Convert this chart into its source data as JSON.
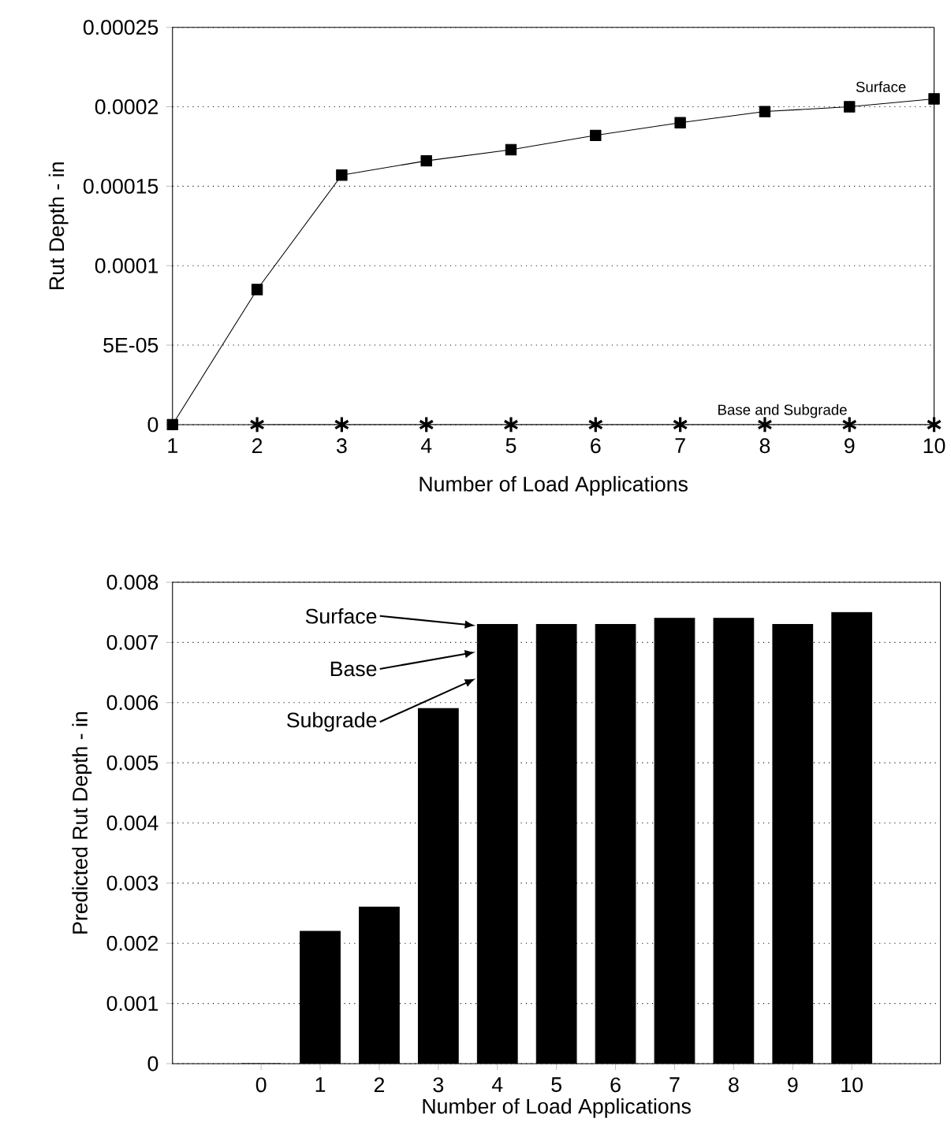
{
  "chart_data": [
    {
      "type": "line",
      "xlabel": "Number of Load Applications",
      "ylabel": "Rut Depth - in",
      "x": [
        1,
        2,
        3,
        4,
        5,
        6,
        7,
        8,
        9,
        10
      ],
      "series": [
        {
          "name": "Surface",
          "color": "#000000",
          "marker": "square",
          "values": [
            0,
            8.5e-05,
            0.000157,
            0.000166,
            0.000173,
            0.000182,
            0.00019,
            0.000197,
            0.0002,
            0.000205
          ]
        },
        {
          "name": "Base and Subgrade",
          "color": "#000000",
          "marker": "cross",
          "values": [
            null,
            0,
            0,
            0,
            0,
            0,
            0,
            0,
            0,
            0
          ]
        }
      ],
      "xlim": [
        1,
        10
      ],
      "xticks": [
        1,
        2,
        3,
        4,
        5,
        6,
        7,
        8,
        9,
        10
      ],
      "ylim": [
        0,
        0.00025
      ],
      "yticks": [
        0,
        {
          "value": 5e-05,
          "label": "5E-05"
        },
        0.0001,
        0.00015,
        0.0002,
        0.00025
      ],
      "grid": "y"
    },
    {
      "type": "bar",
      "xlabel": "Number of Load Applications",
      "ylabel": "Predicted Rut Depth - in",
      "categories": [
        null,
        "0",
        "1",
        "2",
        "3",
        "4",
        "5",
        "6",
        "7",
        "8",
        "9",
        "10",
        null
      ],
      "values": [
        null,
        0,
        0.0022,
        0.0026,
        0.0059,
        0.0073,
        0.0073,
        0.0073,
        0.0074,
        0.0074,
        0.0073,
        0.0075,
        null
      ],
      "color": "#000000",
      "ylim": [
        0,
        0.008
      ],
      "yticks": [
        0,
        0.001,
        0.002,
        0.003,
        0.004,
        0.005,
        0.006,
        0.007,
        0.008
      ],
      "grid": "y",
      "annotations": [
        "Surface",
        "Base",
        "Subgrade"
      ]
    }
  ]
}
